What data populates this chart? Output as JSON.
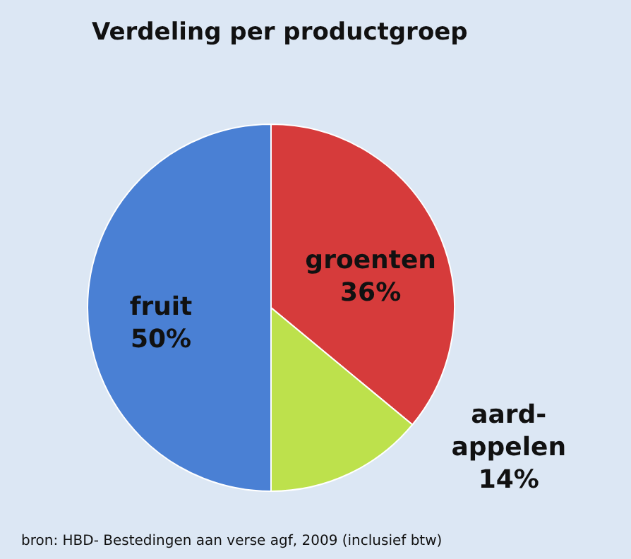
{
  "chart_data": {
    "type": "pie",
    "title": "Verdeling per productgroep",
    "categories": [
      "groenten",
      "aard-appelen",
      "fruit"
    ],
    "values": [
      36,
      14,
      50
    ],
    "colors": [
      "#d63b3b",
      "#bde14c",
      "#4a80d4"
    ],
    "value_labels": [
      "36%",
      "14%",
      "50%"
    ],
    "legend": false,
    "annotations": [
      "bron: HBD- Bestedingen aan verse agf, 2009 (inclusief btw)"
    ]
  }
}
